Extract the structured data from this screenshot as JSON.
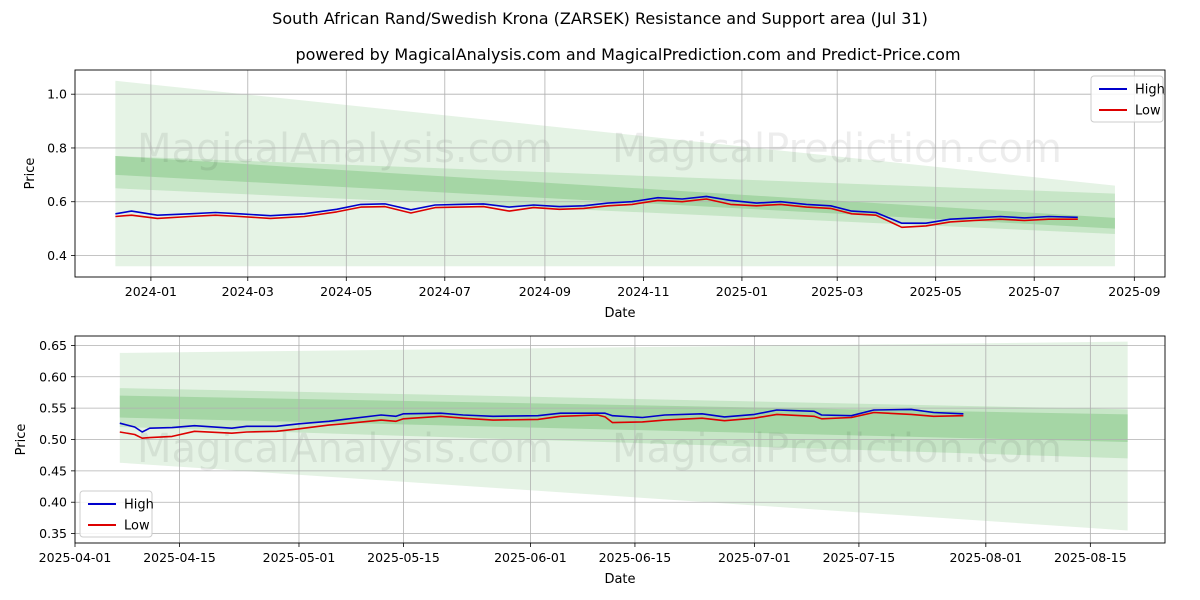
{
  "title": "South African Rand/Swedish Krona (ZARSEK) Resistance and Support area (Jul 31)",
  "subtitle": "powered by MagicalAnalysis.com and MagicalPrediction.com and Predict-Price.com",
  "watermark": [
    "MagicalAnalysis.com",
    "MagicalPrediction.com"
  ],
  "colors": {
    "high": "#0000cc",
    "low": "#dd0000",
    "band": "#2ca02c",
    "grid": "#b0b0b0"
  },
  "chart_data": [
    {
      "type": "line",
      "xlabel": "Date",
      "ylabel": "Price",
      "xlim": [
        "2023-11-15",
        "2025-09-20"
      ],
      "ylim": [
        0.32,
        1.09
      ],
      "x_ticks": [
        "2024-01",
        "2024-03",
        "2024-05",
        "2024-07",
        "2024-09",
        "2024-11",
        "2025-01",
        "2025-03",
        "2025-05",
        "2025-07",
        "2025-09"
      ],
      "y_ticks": [
        0.4,
        0.6,
        0.8,
        1.0
      ],
      "grid": true,
      "legend_position": "top-right",
      "series": [
        {
          "name": "High",
          "x": [
            "2023-12-10",
            "2023-12-20",
            "2024-01-05",
            "2024-01-25",
            "2024-02-10",
            "2024-02-25",
            "2024-03-15",
            "2024-04-05",
            "2024-04-25",
            "2024-05-10",
            "2024-05-25",
            "2024-06-10",
            "2024-06-25",
            "2024-07-10",
            "2024-07-25",
            "2024-08-10",
            "2024-08-25",
            "2024-09-10",
            "2024-09-25",
            "2024-10-10",
            "2024-10-25",
            "2024-11-10",
            "2024-11-25",
            "2024-12-10",
            "2024-12-25",
            "2025-01-10",
            "2025-01-25",
            "2025-02-10",
            "2025-02-25",
            "2025-03-10",
            "2025-03-25",
            "2025-04-10",
            "2025-04-25",
            "2025-05-10",
            "2025-05-25",
            "2025-06-10",
            "2025-06-25",
            "2025-07-10",
            "2025-07-28"
          ],
          "values": [
            0.555,
            0.565,
            0.55,
            0.555,
            0.56,
            0.555,
            0.548,
            0.555,
            0.572,
            0.59,
            0.592,
            0.57,
            0.588,
            0.59,
            0.592,
            0.58,
            0.588,
            0.582,
            0.585,
            0.595,
            0.6,
            0.615,
            0.61,
            0.62,
            0.605,
            0.595,
            0.6,
            0.59,
            0.585,
            0.565,
            0.56,
            0.52,
            0.52,
            0.535,
            0.54,
            0.545,
            0.54,
            0.545,
            0.542
          ]
        },
        {
          "name": "Low",
          "x": [
            "2023-12-10",
            "2023-12-20",
            "2024-01-05",
            "2024-01-25",
            "2024-02-10",
            "2024-02-25",
            "2024-03-15",
            "2024-04-05",
            "2024-04-25",
            "2024-05-10",
            "2024-05-25",
            "2024-06-10",
            "2024-06-25",
            "2024-07-10",
            "2024-07-25",
            "2024-08-10",
            "2024-08-25",
            "2024-09-10",
            "2024-09-25",
            "2024-10-10",
            "2024-10-25",
            "2024-11-10",
            "2024-11-25",
            "2024-12-10",
            "2024-12-25",
            "2025-01-10",
            "2025-01-25",
            "2025-02-10",
            "2025-02-25",
            "2025-03-10",
            "2025-03-25",
            "2025-04-10",
            "2025-04-25",
            "2025-05-10",
            "2025-05-25",
            "2025-06-10",
            "2025-06-25",
            "2025-07-10",
            "2025-07-28"
          ],
          "values": [
            0.545,
            0.55,
            0.538,
            0.545,
            0.55,
            0.545,
            0.538,
            0.545,
            0.562,
            0.58,
            0.582,
            0.558,
            0.578,
            0.58,
            0.582,
            0.565,
            0.578,
            0.572,
            0.575,
            0.585,
            0.59,
            0.605,
            0.6,
            0.61,
            0.59,
            0.585,
            0.59,
            0.58,
            0.575,
            0.555,
            0.55,
            0.505,
            0.51,
            0.525,
            0.53,
            0.535,
            0.53,
            0.535,
            0.535
          ]
        }
      ],
      "bands": [
        {
          "x": [
            "2023-12-10",
            "2025-08-20"
          ],
          "upper": [
            1.05,
            0.66
          ],
          "lower": [
            0.36,
            0.36
          ]
        },
        {
          "x": [
            "2023-12-10",
            "2025-08-20"
          ],
          "upper": [
            0.77,
            0.63
          ],
          "lower": [
            0.65,
            0.48
          ]
        },
        {
          "x": [
            "2023-12-10",
            "2025-08-20"
          ],
          "upper": [
            0.77,
            0.54
          ],
          "lower": [
            0.7,
            0.5
          ]
        }
      ]
    },
    {
      "type": "line",
      "xlabel": "Date",
      "ylabel": "Price",
      "xlim": [
        "2025-04-01",
        "2025-08-25"
      ],
      "ylim": [
        0.335,
        0.665
      ],
      "x_ticks": [
        "2025-04-01",
        "2025-04-15",
        "2025-05-01",
        "2025-05-15",
        "2025-06-01",
        "2025-06-15",
        "2025-07-01",
        "2025-07-15",
        "2025-08-01",
        "2025-08-15"
      ],
      "y_ticks": [
        0.35,
        0.4,
        0.45,
        0.5,
        0.55,
        0.6,
        0.65
      ],
      "grid": true,
      "legend_position": "bottom-left",
      "series": [
        {
          "name": "High",
          "x": [
            "2025-04-07",
            "2025-04-09",
            "2025-04-10",
            "2025-04-11",
            "2025-04-14",
            "2025-04-17",
            "2025-04-22",
            "2025-04-24",
            "2025-04-28",
            "2025-05-01",
            "2025-05-05",
            "2025-05-07",
            "2025-05-12",
            "2025-05-14",
            "2025-05-15",
            "2025-05-20",
            "2025-05-23",
            "2025-05-27",
            "2025-06-02",
            "2025-06-05",
            "2025-06-10",
            "2025-06-11",
            "2025-06-12",
            "2025-06-16",
            "2025-06-19",
            "2025-06-24",
            "2025-06-27",
            "2025-07-01",
            "2025-07-04",
            "2025-07-09",
            "2025-07-10",
            "2025-07-14",
            "2025-07-17",
            "2025-07-22",
            "2025-07-25",
            "2025-07-29"
          ],
          "values": [
            0.526,
            0.52,
            0.512,
            0.518,
            0.519,
            0.522,
            0.518,
            0.521,
            0.521,
            0.525,
            0.529,
            0.532,
            0.539,
            0.537,
            0.541,
            0.542,
            0.539,
            0.537,
            0.538,
            0.542,
            0.542,
            0.542,
            0.538,
            0.535,
            0.539,
            0.541,
            0.536,
            0.54,
            0.547,
            0.545,
            0.539,
            0.538,
            0.547,
            0.548,
            0.543,
            0.541
          ]
        },
        {
          "name": "Low",
          "x": [
            "2025-04-07",
            "2025-04-09",
            "2025-04-10",
            "2025-04-11",
            "2025-04-14",
            "2025-04-17",
            "2025-04-22",
            "2025-04-24",
            "2025-04-28",
            "2025-05-01",
            "2025-05-05",
            "2025-05-07",
            "2025-05-12",
            "2025-05-14",
            "2025-05-15",
            "2025-05-20",
            "2025-05-23",
            "2025-05-27",
            "2025-06-02",
            "2025-06-05",
            "2025-06-10",
            "2025-06-11",
            "2025-06-12",
            "2025-06-16",
            "2025-06-19",
            "2025-06-24",
            "2025-06-27",
            "2025-07-01",
            "2025-07-04",
            "2025-07-09",
            "2025-07-10",
            "2025-07-14",
            "2025-07-17",
            "2025-07-22",
            "2025-07-25",
            "2025-07-29"
          ],
          "values": [
            0.512,
            0.508,
            0.502,
            0.503,
            0.505,
            0.513,
            0.51,
            0.512,
            0.513,
            0.517,
            0.523,
            0.525,
            0.531,
            0.529,
            0.533,
            0.537,
            0.534,
            0.531,
            0.532,
            0.537,
            0.539,
            0.536,
            0.527,
            0.528,
            0.531,
            0.534,
            0.53,
            0.534,
            0.54,
            0.537,
            0.533,
            0.535,
            0.543,
            0.54,
            0.537,
            0.538
          ]
        }
      ],
      "bands": [
        {
          "x": [
            "2025-04-07",
            "2025-08-20"
          ],
          "upper": [
            0.638,
            0.656
          ],
          "lower": [
            0.463,
            0.355
          ]
        },
        {
          "x": [
            "2025-04-07",
            "2025-08-20"
          ],
          "upper": [
            0.582,
            0.548
          ],
          "lower": [
            0.52,
            0.47
          ]
        },
        {
          "x": [
            "2025-04-07",
            "2025-08-20"
          ],
          "upper": [
            0.57,
            0.54
          ],
          "lower": [
            0.535,
            0.496
          ]
        }
      ]
    }
  ]
}
